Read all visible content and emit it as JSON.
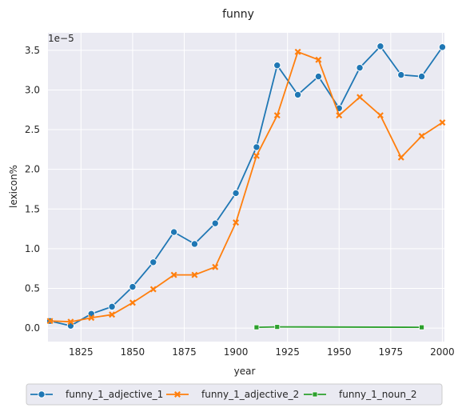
{
  "chart_data": {
    "type": "line",
    "title": "funny",
    "xlabel": "year",
    "ylabel": "lexicon%",
    "y_offset_label": "1e−5",
    "x_ticks": [
      "1825",
      "1850",
      "1875",
      "1900",
      "1925",
      "1950",
      "1975",
      "2000"
    ],
    "y_ticks": [
      "0.0",
      "0.5",
      "1.0",
      "1.5",
      "2.0",
      "2.5",
      "3.0",
      "3.5"
    ],
    "xlim": [
      1809,
      2001
    ],
    "ylim": [
      -0.17,
      3.72
    ],
    "grid": true,
    "legend_position": "bottom",
    "background_color": "#eaeaf2",
    "series": [
      {
        "name": "funny_1_adjective_1",
        "color": "#1f77b4",
        "marker": "circle",
        "x": [
          1810,
          1820,
          1830,
          1840,
          1850,
          1860,
          1870,
          1880,
          1890,
          1900,
          1910,
          1920,
          1930,
          1940,
          1950,
          1960,
          1970,
          1980,
          1990,
          2000
        ],
        "y": [
          0.09,
          0.03,
          0.18,
          0.27,
          0.52,
          0.83,
          1.21,
          1.06,
          1.32,
          1.7,
          2.28,
          3.31,
          2.94,
          3.17,
          2.77,
          3.28,
          3.55,
          3.19,
          3.17,
          3.54
        ]
      },
      {
        "name": "funny_1_adjective_2",
        "color": "#ff7f0e",
        "marker": "x",
        "x": [
          1810,
          1820,
          1830,
          1840,
          1850,
          1860,
          1870,
          1880,
          1890,
          1900,
          1910,
          1920,
          1930,
          1940,
          1950,
          1960,
          1970,
          1980,
          1990,
          2000
        ],
        "y": [
          0.09,
          0.08,
          0.13,
          0.17,
          0.32,
          0.49,
          0.67,
          0.67,
          0.77,
          1.33,
          2.17,
          2.68,
          3.48,
          3.38,
          2.68,
          2.91,
          2.68,
          2.15,
          2.42,
          2.59
        ]
      },
      {
        "name": "funny_1_noun_2",
        "color": "#2ca02c",
        "marker": "square",
        "x": [
          1910,
          1920,
          1990
        ],
        "y": [
          0.01,
          0.015,
          0.01
        ]
      }
    ]
  }
}
